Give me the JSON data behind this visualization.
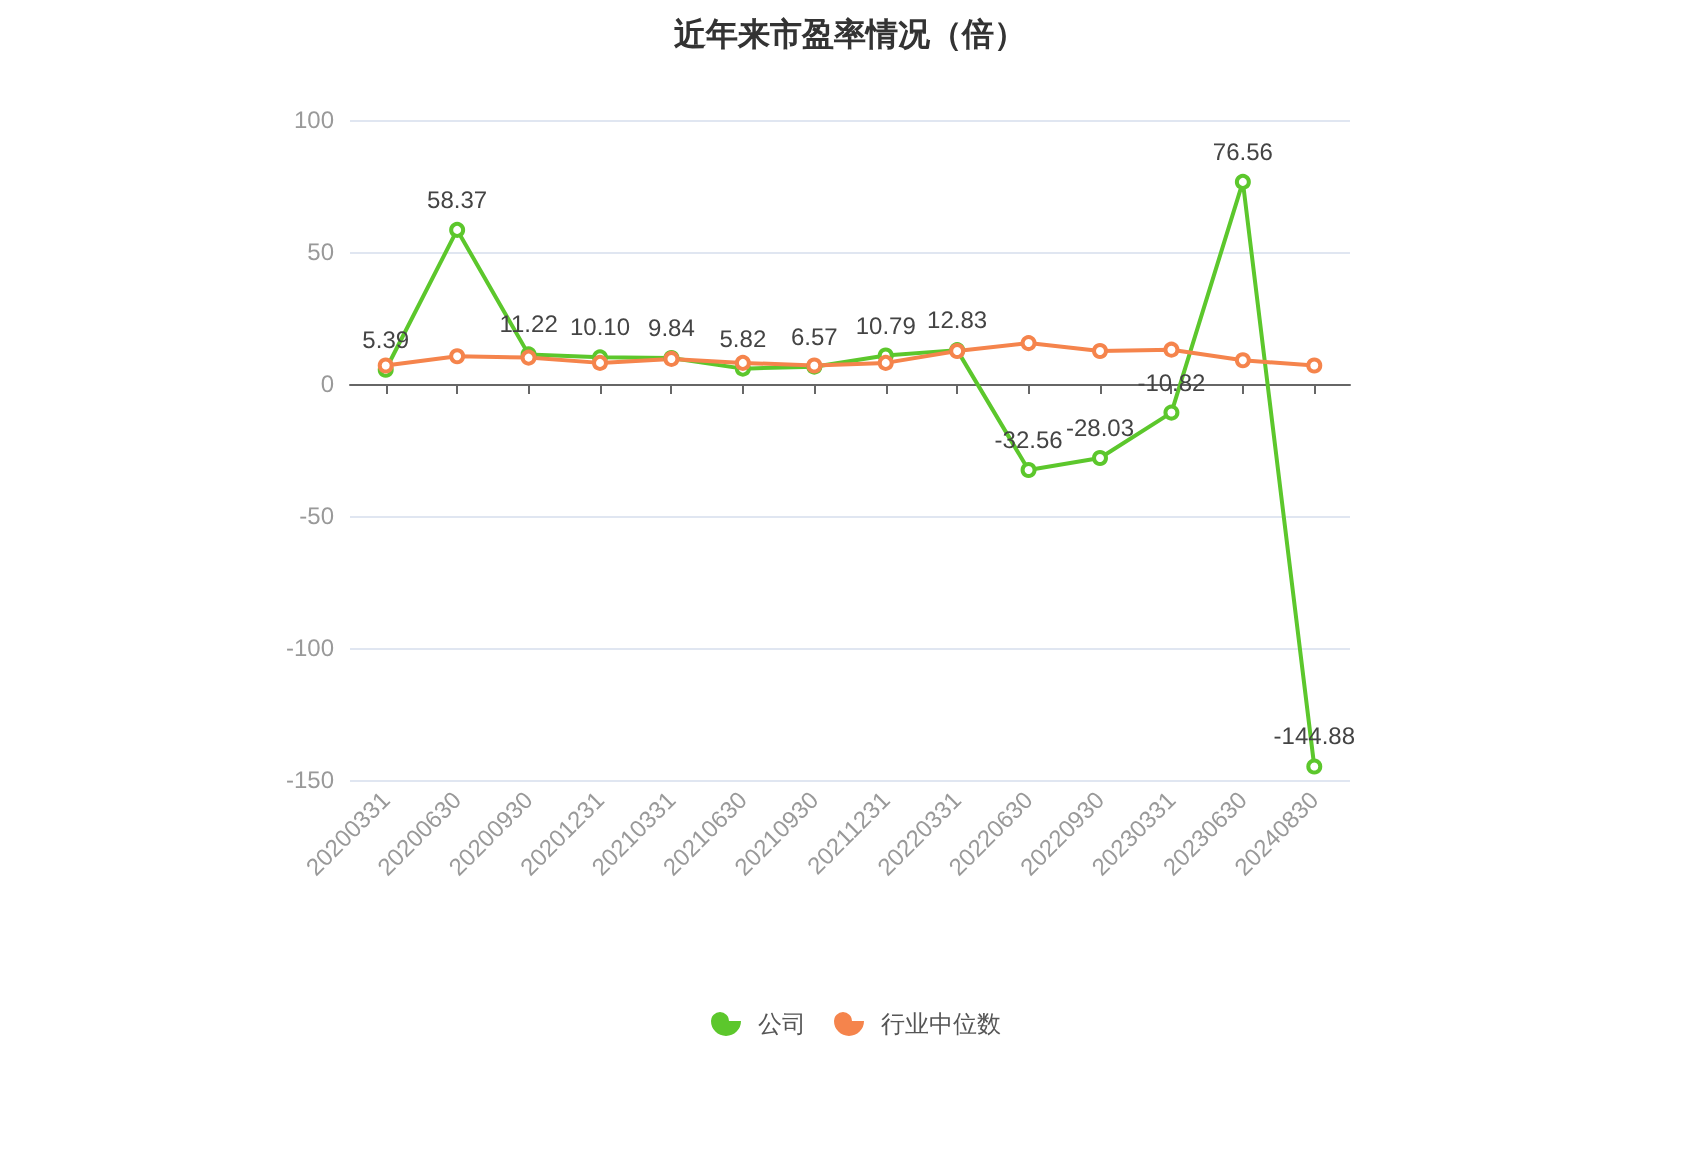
{
  "chart_data": {
    "type": "line",
    "title": "近年来市盈率情况（倍）",
    "categories": [
      "20200331",
      "20200630",
      "20200930",
      "20201231",
      "20210331",
      "20210630",
      "20210930",
      "20211231",
      "20220331",
      "20220630",
      "20220930",
      "20230331",
      "20230630",
      "20240830"
    ],
    "series": [
      {
        "name": "公司",
        "color": "#5cc72c",
        "values": [
          5.39,
          58.37,
          11.22,
          10.1,
          9.84,
          5.82,
          6.57,
          10.79,
          12.83,
          -32.56,
          -28.03,
          -10.82,
          76.56,
          -144.88
        ],
        "value_labels": [
          "5.39",
          "58.37",
          "11.22",
          "10.10",
          "9.84",
          "5.82",
          "6.57",
          "10.79",
          "12.83",
          "-32.56",
          "-28.03",
          "-10.82",
          "76.56",
          "-144.88"
        ]
      },
      {
        "name": "行业中位数",
        "color": "#f5844c",
        "values": [
          7,
          10.5,
          10,
          8,
          9.5,
          8,
          7,
          8,
          12.5,
          15.5,
          12.5,
          13,
          9,
          7
        ]
      }
    ],
    "ylim": [
      -150,
      100
    ],
    "yticks": [
      -150,
      -100,
      -50,
      0,
      50,
      100
    ],
    "grid": "y",
    "legend": "bottom",
    "marker": "circle",
    "line_style": "solid"
  }
}
